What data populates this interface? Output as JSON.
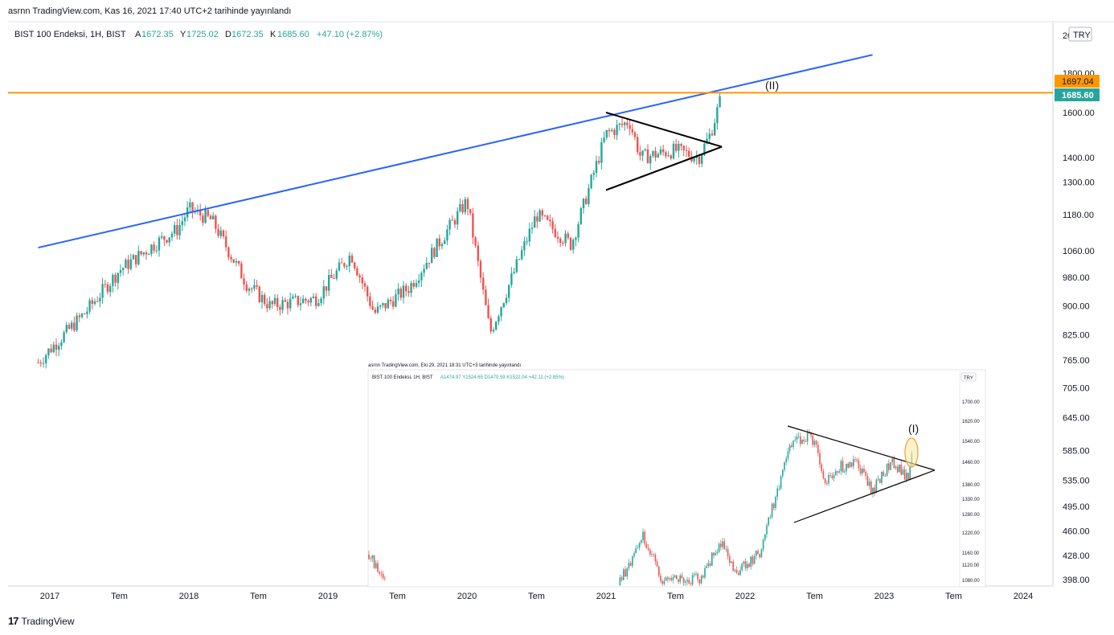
{
  "header": {
    "published": "asrnn TradingView.com, Kas 16, 2021 17:40 UTC+2 tarihinde yayınlandı"
  },
  "legend": {
    "symbol": "BIST 100 Endeksi, 1H, BIST",
    "open_label": "A",
    "open": "1672.35",
    "high_label": "Y",
    "high": "1725.02",
    "low_label": "D",
    "low": "1672.35",
    "close_label": "K",
    "close": "1685.60",
    "change": "+47.10 (+2.87%)"
  },
  "currency_button": "TRY",
  "price_labels": {
    "resistance": "1697.04",
    "last": "1685.60",
    "top_partial": "20"
  },
  "wave_label_main": "(II)",
  "inset": {
    "published": "asrnn TradingView.com, Eki 29, 2021 18:31 UTC+3 tarihinde yayınlandı",
    "legend": "BIST 100 Endeksi, 1H, BIST",
    "ohlc": "A1474.97 Y1524.65 D1470.59 K1522.04 +42.11 (+2.85%)",
    "currency_button": "TRY",
    "axis_ticks": [
      "1700.00",
      "1620.00",
      "1540.00",
      "1460.00",
      "1380.00",
      "1330.00",
      "1280.00",
      "1220.00",
      "1160.00",
      "1120.00",
      "1080.00"
    ],
    "wave_label": "(I)"
  },
  "chart_data": {
    "type": "candlestick",
    "title": "BIST 100 Endeksi, 1H, BIST",
    "y_scale": "log",
    "y_ticks": [
      "1800.00",
      "1600.00",
      "1400.00",
      "1300.00",
      "1180.00",
      "1060.00",
      "980.00",
      "900.00",
      "825.00",
      "765.00",
      "705.00",
      "645.00",
      "585.00",
      "535.00",
      "495.00",
      "460.00",
      "428.00",
      "398.00"
    ],
    "x_ticks": [
      "2017",
      "Tem",
      "2018",
      "Tem",
      "2019",
      "Tem",
      "2020",
      "Tem",
      "2021",
      "Tem",
      "2022",
      "Tem",
      "2023",
      "Tem",
      "2024"
    ],
    "price_path": [
      {
        "date": "2016-12",
        "close": 760
      },
      {
        "date": "2017-01",
        "close": 790
      },
      {
        "date": "2017-04",
        "close": 880
      },
      {
        "date": "2017-07",
        "close": 1000
      },
      {
        "date": "2017-10",
        "close": 1080
      },
      {
        "date": "2017-12",
        "close": 1130
      },
      {
        "date": "2018-01",
        "close": 1200
      },
      {
        "date": "2018-03",
        "close": 1160
      },
      {
        "date": "2018-06",
        "close": 960
      },
      {
        "date": "2018-08",
        "close": 900
      },
      {
        "date": "2018-12",
        "close": 920
      },
      {
        "date": "2019-03",
        "close": 1050
      },
      {
        "date": "2019-05",
        "close": 880
      },
      {
        "date": "2019-08",
        "close": 950
      },
      {
        "date": "2020-01",
        "close": 1230
      },
      {
        "date": "2020-03",
        "close": 830
      },
      {
        "date": "2020-07",
        "close": 1180
      },
      {
        "date": "2020-10",
        "close": 1080
      },
      {
        "date": "2021-01",
        "close": 1500
      },
      {
        "date": "2021-03",
        "close": 1560
      },
      {
        "date": "2021-04",
        "close": 1400
      },
      {
        "date": "2021-07",
        "close": 1430
      },
      {
        "date": "2021-09",
        "close": 1400
      },
      {
        "date": "2021-10",
        "close": 1500
      },
      {
        "date": "2021-11",
        "close": 1685.6
      }
    ],
    "annotations": {
      "horizontal_resistance": 1697.04,
      "trendline": [
        {
          "date": "2016-12",
          "price": 1070
        },
        {
          "date": "2022-12",
          "price": 1900
        }
      ]
    },
    "colors": {
      "up": "#26a69a",
      "down": "#ef5350",
      "resistance": "#ff9800",
      "trendline": "#2962ff",
      "last_price": "#26a69a"
    }
  }
}
